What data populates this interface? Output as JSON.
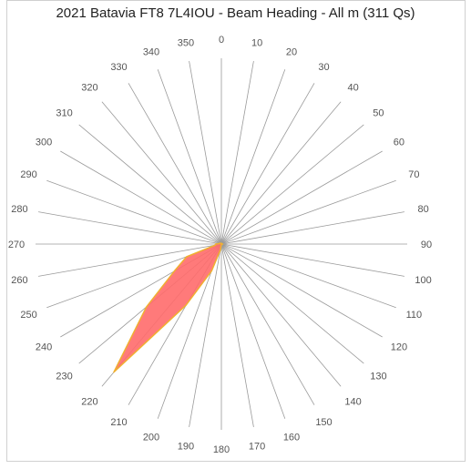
{
  "chart_data": {
    "type": "radar",
    "title": "2021 Batavia FT8 7L4IOU - Beam Heading - All m (311 Qs)",
    "angle_labels": [
      "0",
      "10",
      "20",
      "30",
      "40",
      "50",
      "60",
      "70",
      "80",
      "90",
      "100",
      "110",
      "120",
      "130",
      "140",
      "150",
      "160",
      "170",
      "180",
      "190",
      "200",
      "210",
      "220",
      "230",
      "240",
      "250",
      "260",
      "270",
      "280",
      "290",
      "300",
      "310",
      "320",
      "330",
      "340",
      "350"
    ],
    "directions_deg": [
      0,
      10,
      20,
      30,
      40,
      50,
      60,
      70,
      80,
      90,
      100,
      110,
      120,
      130,
      140,
      150,
      160,
      170,
      180,
      190,
      200,
      210,
      220,
      230,
      240,
      250,
      260,
      270,
      280,
      290,
      300,
      310,
      320,
      330,
      340,
      350
    ],
    "series": [
      {
        "values": [
          0.7,
          0.3,
          0.3,
          0.3,
          0.4,
          0.4,
          0.3,
          0.3,
          0.5,
          1.1,
          0.3,
          0.3,
          0.3,
          0.3,
          0.2,
          0.2,
          0.2,
          0.2,
          0.2,
          5,
          23,
          57,
          135,
          79,
          44,
          30,
          5,
          4.7,
          1.8,
          1.9,
          1,
          0.6,
          0.6,
          0.4,
          0.4,
          0.4
        ],
        "fill": "#ff6b6b",
        "stroke": "#f0b030"
      }
    ],
    "rmax": 150,
    "grid": true
  }
}
